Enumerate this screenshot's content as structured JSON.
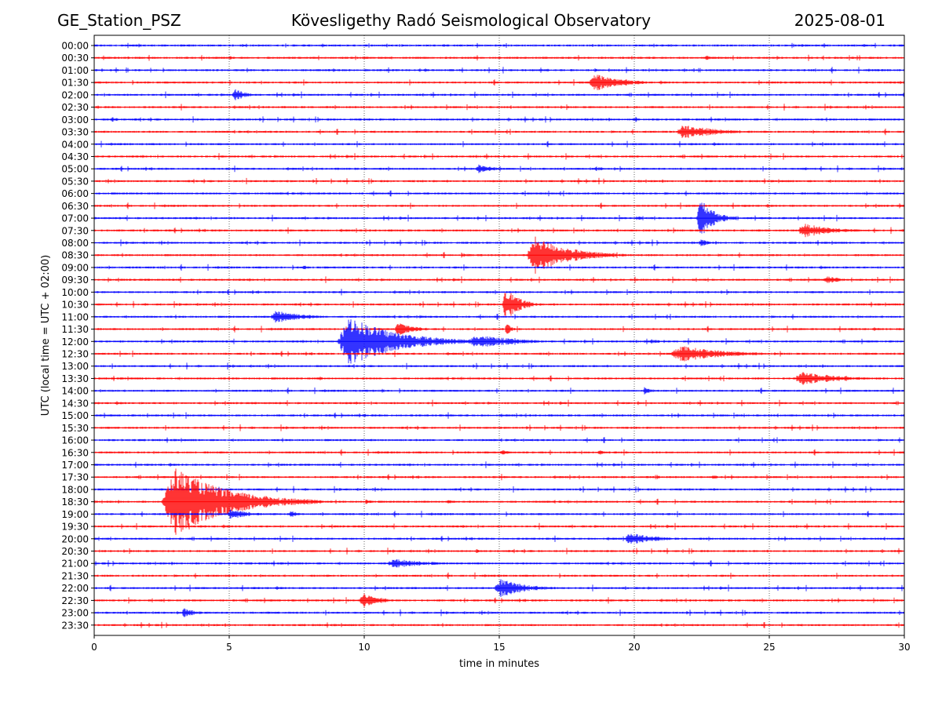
{
  "header": {
    "station": "GE_Station_PSZ",
    "observatory": "Kövesligethy Radó Seismological Observatory",
    "date": "2025-08-01"
  },
  "chart_data": {
    "type": "line",
    "title": "Kövesligethy Radó Seismological Observatory",
    "xlabel": "time in minutes",
    "ylabel": "UTC (local time = UTC + 02:00)",
    "xlim": [
      0,
      30
    ],
    "x_ticks": [
      0,
      5,
      10,
      15,
      20,
      25,
      30
    ],
    "grid": "vertical dotted lines at 5-minute ticks",
    "row_colors": [
      "#0000ff",
      "#ff0000"
    ],
    "rows": [
      "00:00",
      "00:30",
      "01:00",
      "01:30",
      "02:00",
      "02:30",
      "03:00",
      "03:30",
      "04:00",
      "04:30",
      "05:00",
      "05:30",
      "06:00",
      "06:30",
      "07:00",
      "07:30",
      "08:00",
      "08:30",
      "09:00",
      "09:30",
      "10:00",
      "10:30",
      "11:00",
      "11:30",
      "12:00",
      "12:30",
      "13:00",
      "13:30",
      "14:00",
      "14:30",
      "15:00",
      "15:30",
      "16:00",
      "16:30",
      "17:00",
      "17:30",
      "18:00",
      "18:30",
      "19:00",
      "19:30",
      "20:00",
      "20:30",
      "21:00",
      "21:30",
      "22:00",
      "22:30",
      "23:00",
      "23:30"
    ],
    "events": [
      {
        "row": 1,
        "t": 5.0,
        "amp": 0.5,
        "dur": 0.3
      },
      {
        "row": 1,
        "t": 22.6,
        "amp": 0.6,
        "dur": 0.8
      },
      {
        "row": 2,
        "t": 12.2,
        "amp": 0.5,
        "dur": 0.6
      },
      {
        "row": 2,
        "t": 18.5,
        "amp": 0.5,
        "dur": 0.5
      },
      {
        "row": 3,
        "t": 18.3,
        "amp": 2.0,
        "dur": 3.0
      },
      {
        "row": 4,
        "t": 5.1,
        "amp": 1.5,
        "dur": 1.2
      },
      {
        "row": 6,
        "t": 0.6,
        "amp": 0.6,
        "dur": 0.8
      },
      {
        "row": 6,
        "t": 20.0,
        "amp": 0.6,
        "dur": 0.6
      },
      {
        "row": 7,
        "t": 21.5,
        "amp": 1.6,
        "dur": 4.0
      },
      {
        "row": 10,
        "t": 14.1,
        "amp": 1.0,
        "dur": 1.8
      },
      {
        "row": 10,
        "t": 18.5,
        "amp": 0.5,
        "dur": 1.2
      },
      {
        "row": 10,
        "t": 26.3,
        "amp": 0.4,
        "dur": 0.4
      },
      {
        "row": 13,
        "t": 29.8,
        "amp": 0.6,
        "dur": 0.3
      },
      {
        "row": 14,
        "t": 22.3,
        "amp": 5.0,
        "dur": 1.5
      },
      {
        "row": 14,
        "t": 20.0,
        "amp": 0.5,
        "dur": 1.0
      },
      {
        "row": 15,
        "t": 26.0,
        "amp": 1.5,
        "dur": 3.5
      },
      {
        "row": 16,
        "t": 22.4,
        "amp": 1.0,
        "dur": 0.8
      },
      {
        "row": 17,
        "t": 16.0,
        "amp": 4.0,
        "dur": 4.0
      },
      {
        "row": 17,
        "t": 13.5,
        "amp": 0.4,
        "dur": 2.0
      },
      {
        "row": 18,
        "t": 7.7,
        "amp": 0.6,
        "dur": 0.5
      },
      {
        "row": 19,
        "t": 27.0,
        "amp": 1.0,
        "dur": 1.5
      },
      {
        "row": 20,
        "t": 24.5,
        "amp": 0.4,
        "dur": 0.5
      },
      {
        "row": 21,
        "t": 15.1,
        "amp": 4.0,
        "dur": 1.5
      },
      {
        "row": 22,
        "t": 6.5,
        "amp": 1.5,
        "dur": 3.0
      },
      {
        "row": 22,
        "t": 12.0,
        "amp": 0.4,
        "dur": 0.8
      },
      {
        "row": 23,
        "t": 11.1,
        "amp": 1.5,
        "dur": 2.0
      },
      {
        "row": 23,
        "t": 15.2,
        "amp": 1.5,
        "dur": 0.6
      },
      {
        "row": 24,
        "t": 9.0,
        "amp": 5.5,
        "dur": 5.5
      },
      {
        "row": 24,
        "t": 13.8,
        "amp": 1.5,
        "dur": 4.5
      },
      {
        "row": 24,
        "t": 20.5,
        "amp": 0.5,
        "dur": 1.5
      },
      {
        "row": 25,
        "t": 21.3,
        "amp": 1.8,
        "dur": 5.0
      },
      {
        "row": 27,
        "t": 25.9,
        "amp": 1.6,
        "dur": 4.0
      },
      {
        "row": 27,
        "t": 8.3,
        "amp": 0.5,
        "dur": 0.5
      },
      {
        "row": 28,
        "t": 20.3,
        "amp": 0.8,
        "dur": 1.0
      },
      {
        "row": 28,
        "t": 10.6,
        "amp": 0.5,
        "dur": 0.5
      },
      {
        "row": 33,
        "t": 15.0,
        "amp": 0.6,
        "dur": 1.0
      },
      {
        "row": 33,
        "t": 18.6,
        "amp": 0.6,
        "dur": 1.0
      },
      {
        "row": 35,
        "t": 20.8,
        "amp": 0.5,
        "dur": 0.5
      },
      {
        "row": 35,
        "t": 22.8,
        "amp": 0.5,
        "dur": 1.0
      },
      {
        "row": 36,
        "t": 23.0,
        "amp": 0.3,
        "dur": 0.3
      },
      {
        "row": 37,
        "t": 2.5,
        "amp": 7.5,
        "dur": 6.0
      },
      {
        "row": 37,
        "t": 10.0,
        "amp": 0.6,
        "dur": 1.0
      },
      {
        "row": 37,
        "t": 13.0,
        "amp": 0.5,
        "dur": 1.2
      },
      {
        "row": 38,
        "t": 4.9,
        "amp": 1.3,
        "dur": 2.0
      },
      {
        "row": 38,
        "t": 7.2,
        "amp": 0.8,
        "dur": 1.0
      },
      {
        "row": 40,
        "t": 19.6,
        "amp": 1.3,
        "dur": 3.0
      },
      {
        "row": 41,
        "t": 14.1,
        "amp": 0.5,
        "dur": 0.5
      },
      {
        "row": 42,
        "t": 10.8,
        "amp": 1.0,
        "dur": 4.0
      },
      {
        "row": 43,
        "t": 0.3,
        "amp": 0.3,
        "dur": 0.3
      },
      {
        "row": 44,
        "t": 14.8,
        "amp": 2.0,
        "dur": 3.0
      },
      {
        "row": 45,
        "t": 9.8,
        "amp": 1.6,
        "dur": 2.0
      },
      {
        "row": 46,
        "t": 3.2,
        "amp": 1.0,
        "dur": 1.5
      }
    ]
  }
}
